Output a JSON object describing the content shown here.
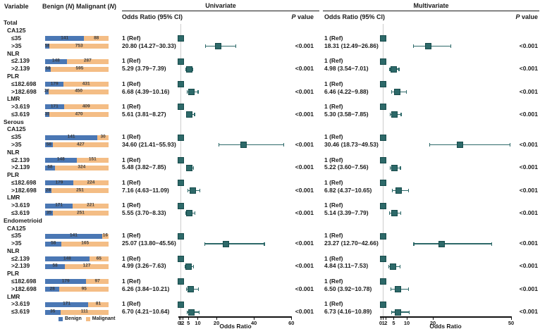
{
  "colors": {
    "benign": "#4a77b4",
    "malignant": "#f4bd85",
    "marker": "#2d6969",
    "marker_border": "#174b4b",
    "whisker": "#2d6969",
    "refline": "#cccccc",
    "axis": "#111111",
    "text": "#1a1a1a"
  },
  "chart_data": {
    "type": "forest",
    "columns": {
      "variable": "Variable",
      "benign_pre": "Benign (",
      "benign_it": "N",
      "benign_post": ")",
      "malignant_pre": "Malignant (",
      "malignant_it": "N",
      "malignant_post": ")"
    },
    "legend": {
      "benign_label": "Benign",
      "malignant_label": "Malignant"
    },
    "panels": {
      "univariate": {
        "title": "Univariate",
        "or_header": "Odds Ratio (95% CI)",
        "p_header_it": "P",
        "p_header_rest": " value",
        "axis": {
          "scale": "linear",
          "min": 0,
          "max": 60,
          "ticks": [
            0,
            1,
            2,
            5,
            10,
            20,
            40,
            60
          ],
          "label": "Odds Ratio"
        }
      },
      "multivariate": {
        "title": "Multivariate",
        "or_header": "Odds Ratio (95% CI)",
        "p_header_it": "P",
        "p_header_rest": " value",
        "axis": {
          "scale": "linear",
          "min": 0,
          "max": 50,
          "ticks": [
            0,
            1,
            2,
            5,
            10,
            20,
            50
          ],
          "label": "Odds Ratio"
        }
      }
    },
    "sections": [
      {
        "name": "Total",
        "groups": [
          {
            "name": "CA125",
            "rows": [
              {
                "label": "≤35",
                "benign": 141,
                "malignant": 88,
                "univariate": {
                  "text": "1 (Ref)",
                  "or": 1
                },
                "multivariate": {
                  "text": "1 (Ref)",
                  "or": 1
                }
              },
              {
                "label": ">35",
                "benign": 58,
                "malignant": 753,
                "univariate": {
                  "text": "20.80 (14.27−30.33)",
                  "or": 20.8,
                  "ci": [
                    14.27,
                    30.33
                  ],
                  "p": "<0.001"
                },
                "multivariate": {
                  "text": "18.31 (12.49−26.86)",
                  "or": 18.31,
                  "ci": [
                    12.49,
                    26.86
                  ],
                  "p": "<0.001"
                }
              }
            ]
          },
          {
            "name": "NLR",
            "rows": [
              {
                "label": "≤2.139",
                "benign": 148,
                "malignant": 287,
                "univariate": {
                  "text": "1 (Ref)",
                  "or": 1
                },
                "multivariate": {
                  "text": "1 (Ref)",
                  "or": 1
                }
              },
              {
                "label": ">2.139",
                "benign": 58,
                "malignant": 595,
                "univariate": {
                  "text": "5.29 (3.79−7.39)",
                  "or": 5.29,
                  "ci": [
                    3.79,
                    7.39
                  ],
                  "p": "<0.001"
                },
                "multivariate": {
                  "text": "4.98 (3.54−7.01)",
                  "or": 4.98,
                  "ci": [
                    3.54,
                    7.01
                  ],
                  "p": "<0.001"
                }
              }
            ]
          },
          {
            "name": "PLR",
            "rows": [
              {
                "label": "≤182.698",
                "benign": 179,
                "malignant": 431,
                "univariate": {
                  "text": "1 (Ref)",
                  "or": 1
                },
                "multivariate": {
                  "text": "1 (Ref)",
                  "or": 1
                }
              },
              {
                "label": ">182.698",
                "benign": 28,
                "malignant": 450,
                "univariate": {
                  "text": "6.68 (4.39−10.16)",
                  "or": 6.68,
                  "ci": [
                    4.39,
                    10.16
                  ],
                  "p": "<0.001"
                },
                "multivariate": {
                  "text": "6.46 (4.22−9.88)",
                  "or": 6.46,
                  "ci": [
                    4.22,
                    9.88
                  ],
                  "p": "<0.001"
                }
              }
            ]
          },
          {
            "name": "LMR",
            "rows": [
              {
                "label": ">3.619",
                "benign": 171,
                "malignant": 409,
                "univariate": {
                  "text": "1 (Ref)",
                  "or": 1
                },
                "multivariate": {
                  "text": "1 (Ref)",
                  "or": 1
                }
              },
              {
                "label": "≤3.619",
                "benign": 35,
                "malignant": 470,
                "univariate": {
                  "text": "5.61 (3.81−8.27)",
                  "or": 5.61,
                  "ci": [
                    3.81,
                    8.27
                  ],
                  "p": "<0.001"
                },
                "multivariate": {
                  "text": "5.30 (3.58−7.85)",
                  "or": 5.3,
                  "ci": [
                    3.58,
                    7.85
                  ],
                  "p": "<0.001"
                }
              }
            ]
          }
        ]
      },
      {
        "name": "Serous",
        "groups": [
          {
            "name": "CA125",
            "rows": [
              {
                "label": "≤35",
                "benign": 141,
                "malignant": 30,
                "univariate": {
                  "text": "1 (Ref)",
                  "or": 1
                },
                "multivariate": {
                  "text": "1 (Ref)",
                  "or": 1
                }
              },
              {
                "label": ">35",
                "benign": 58,
                "malignant": 427,
                "univariate": {
                  "text": "34.60 (21.41−55.93)",
                  "or": 34.6,
                  "ci": [
                    21.41,
                    55.93
                  ],
                  "p": "<0.001"
                },
                "multivariate": {
                  "text": "30.46 (18.73−49.53)",
                  "or": 30.46,
                  "ci": [
                    18.73,
                    49.53
                  ],
                  "p": "<0.001"
                }
              }
            ]
          },
          {
            "name": "NLR",
            "rows": [
              {
                "label": "≤2.139",
                "benign": 148,
                "malignant": 151,
                "univariate": {
                  "text": "1 (Ref)",
                  "or": 1
                },
                "multivariate": {
                  "text": "1 (Ref)",
                  "or": 1
                }
              },
              {
                "label": ">2.139",
                "benign": 58,
                "malignant": 324,
                "univariate": {
                  "text": "5.48 (3.82−7.85)",
                  "or": 5.48,
                  "ci": [
                    3.82,
                    7.85
                  ],
                  "p": "<0.001"
                },
                "multivariate": {
                  "text": "5.22 (3.60−7.56)",
                  "or": 5.22,
                  "ci": [
                    3.6,
                    7.56
                  ],
                  "p": "<0.001"
                }
              }
            ]
          },
          {
            "name": "PLR",
            "rows": [
              {
                "label": "≤182.698",
                "benign": 179,
                "malignant": 224,
                "univariate": {
                  "text": "1 (Ref)",
                  "or": 1
                },
                "multivariate": {
                  "text": "1 (Ref)",
                  "or": 1
                }
              },
              {
                "label": ">182.698",
                "benign": 28,
                "malignant": 251,
                "univariate": {
                  "text": "7.16 (4.63−11.09)",
                  "or": 7.16,
                  "ci": [
                    4.63,
                    11.09
                  ],
                  "p": "<0.001"
                },
                "multivariate": {
                  "text": "6.82 (4.37−10.65)",
                  "or": 6.82,
                  "ci": [
                    4.37,
                    10.65
                  ],
                  "p": "<0.001"
                }
              }
            ]
          },
          {
            "name": "LMR",
            "rows": [
              {
                "label": ">3.619",
                "benign": 171,
                "malignant": 221,
                "univariate": {
                  "text": "1 (Ref)",
                  "or": 1
                },
                "multivariate": {
                  "text": "1 (Ref)",
                  "or": 1
                }
              },
              {
                "label": "≤3.619",
                "benign": 35,
                "malignant": 251,
                "univariate": {
                  "text": "5.55 (3.70−8.33)",
                  "or": 5.55,
                  "ci": [
                    3.7,
                    8.33
                  ],
                  "p": "<0.001"
                },
                "multivariate": {
                  "text": "5.14 (3.39−7.79)",
                  "or": 5.14,
                  "ci": [
                    3.39,
                    7.79
                  ],
                  "p": "<0.001"
                }
              }
            ]
          }
        ]
      },
      {
        "name": "Endometrioid",
        "groups": [
          {
            "name": "CA125",
            "rows": [
              {
                "label": "≤35",
                "benign": 141,
                "malignant": 16,
                "univariate": {
                  "text": "1 (Ref)",
                  "or": 1
                },
                "multivariate": {
                  "text": "1 (Ref)",
                  "or": 1
                }
              },
              {
                "label": ">35",
                "benign": 58,
                "malignant": 165,
                "univariate": {
                  "text": "25.07 (13.80−45.56)",
                  "or": 25.07,
                  "ci": [
                    13.8,
                    45.56
                  ],
                  "p": "<0.001"
                },
                "multivariate": {
                  "text": "23.27 (12.70−42.66)",
                  "or": 23.27,
                  "ci": [
                    12.7,
                    42.66
                  ],
                  "p": "<0.001"
                }
              }
            ]
          },
          {
            "name": "NLR",
            "rows": [
              {
                "label": "≤2.139",
                "benign": 148,
                "malignant": 65,
                "univariate": {
                  "text": "1 (Ref)",
                  "or": 1
                },
                "multivariate": {
                  "text": "1 (Ref)",
                  "or": 1
                }
              },
              {
                "label": ">2.139",
                "benign": 58,
                "malignant": 127,
                "univariate": {
                  "text": "4.99 (3.26−7.63)",
                  "or": 4.99,
                  "ci": [
                    3.26,
                    7.63
                  ],
                  "p": "<0.001"
                },
                "multivariate": {
                  "text": "4.84 (3.11−7.53)",
                  "or": 4.84,
                  "ci": [
                    3.11,
                    7.53
                  ],
                  "p": "<0.001"
                }
              }
            ]
          },
          {
            "name": "PLR",
            "rows": [
              {
                "label": "≤182.698",
                "benign": 179,
                "malignant": 97,
                "univariate": {
                  "text": "1 (Ref)",
                  "or": 1
                },
                "multivariate": {
                  "text": "1 (Ref)",
                  "or": 1
                }
              },
              {
                "label": ">182.698",
                "benign": 28,
                "malignant": 95,
                "univariate": {
                  "text": "6.26 (3.84−10.21)",
                  "or": 6.26,
                  "ci": [
                    3.84,
                    10.21
                  ],
                  "p": "<0.001"
                },
                "multivariate": {
                  "text": "6.50 (3.92−10.78)",
                  "or": 6.5,
                  "ci": [
                    3.92,
                    10.78
                  ],
                  "p": "<0.001"
                }
              }
            ]
          },
          {
            "name": "LMR",
            "rows": [
              {
                "label": ">3.619",
                "benign": 171,
                "malignant": 81,
                "univariate": {
                  "text": "1 (Ref)",
                  "or": 1
                },
                "multivariate": {
                  "text": "1 (Ref)",
                  "or": 1
                }
              },
              {
                "label": "≤3.619",
                "benign": 35,
                "malignant": 111,
                "univariate": {
                  "text": "6.70 (4.21−10.64)",
                  "or": 6.7,
                  "ci": [
                    4.21,
                    10.64
                  ],
                  "p": "<0.001"
                },
                "multivariate": {
                  "text": "6.73 (4.16−10.89)",
                  "or": 6.73,
                  "ci": [
                    4.16,
                    10.89
                  ],
                  "p": "<0.001"
                }
              }
            ]
          }
        ]
      }
    ]
  }
}
